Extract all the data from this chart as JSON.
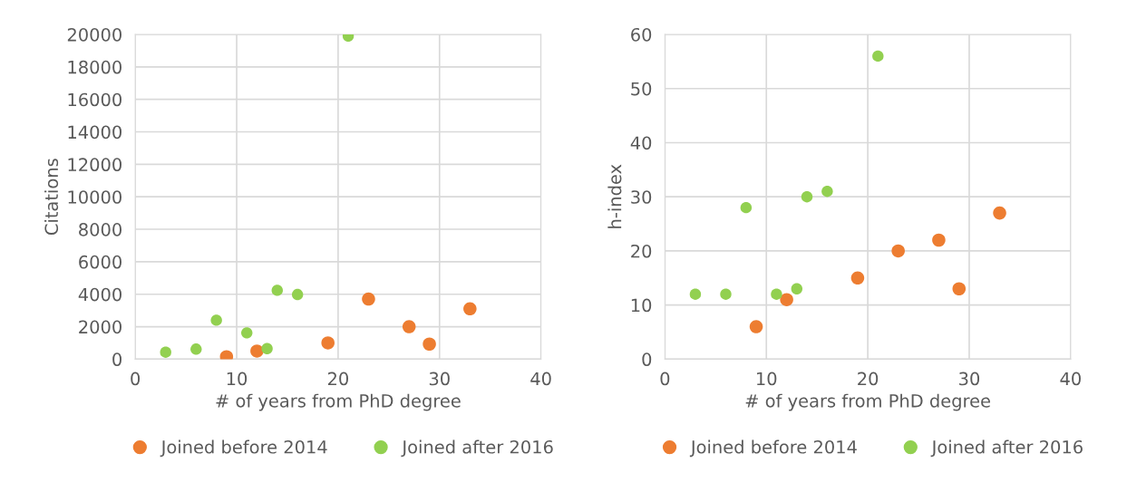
{
  "chart_data": [
    {
      "type": "scatter",
      "xlabel": "# of years from PhD degree",
      "ylabel": "Citations",
      "xlim": [
        0,
        40
      ],
      "xticks": [
        0,
        10,
        20,
        30,
        40
      ],
      "ylim": [
        0,
        20000
      ],
      "yticks": [
        0,
        2000,
        4000,
        6000,
        8000,
        10000,
        12000,
        14000,
        16000,
        18000,
        20000
      ],
      "grid": true,
      "legend": "bottom",
      "marker": "circle",
      "series": [
        {
          "name": "Joined before 2014",
          "color": "#ed7d31",
          "x": [
            9,
            12,
            19,
            23,
            27,
            29,
            33
          ],
          "values": [
            150,
            500,
            1000,
            3700,
            2000,
            930,
            3100
          ]
        },
        {
          "name": "Joined after 2016",
          "color": "#92d050",
          "x": [
            3,
            6,
            8,
            11,
            13,
            14,
            16,
            21
          ],
          "values": [
            430,
            620,
            2400,
            1620,
            650,
            4240,
            3980,
            19900
          ]
        }
      ]
    },
    {
      "type": "scatter",
      "xlabel": "# of years from PhD degree",
      "ylabel": "h-index",
      "xlim": [
        0,
        40
      ],
      "xticks": [
        0,
        10,
        20,
        30,
        40
      ],
      "ylim": [
        0,
        60
      ],
      "yticks": [
        0,
        10,
        20,
        30,
        40,
        50,
        60
      ],
      "grid": true,
      "legend": "bottom",
      "marker": "circle",
      "series": [
        {
          "name": "Joined before 2014",
          "color": "#ed7d31",
          "x": [
            9,
            12,
            19,
            23,
            27,
            29,
            33
          ],
          "values": [
            6,
            11,
            15,
            20,
            22,
            13,
            27
          ]
        },
        {
          "name": "Joined after 2016",
          "color": "#92d050",
          "x": [
            3,
            6,
            8,
            11,
            13,
            14,
            16,
            21
          ],
          "values": [
            12,
            12,
            28,
            12,
            13,
            30,
            31,
            56
          ]
        }
      ]
    }
  ]
}
